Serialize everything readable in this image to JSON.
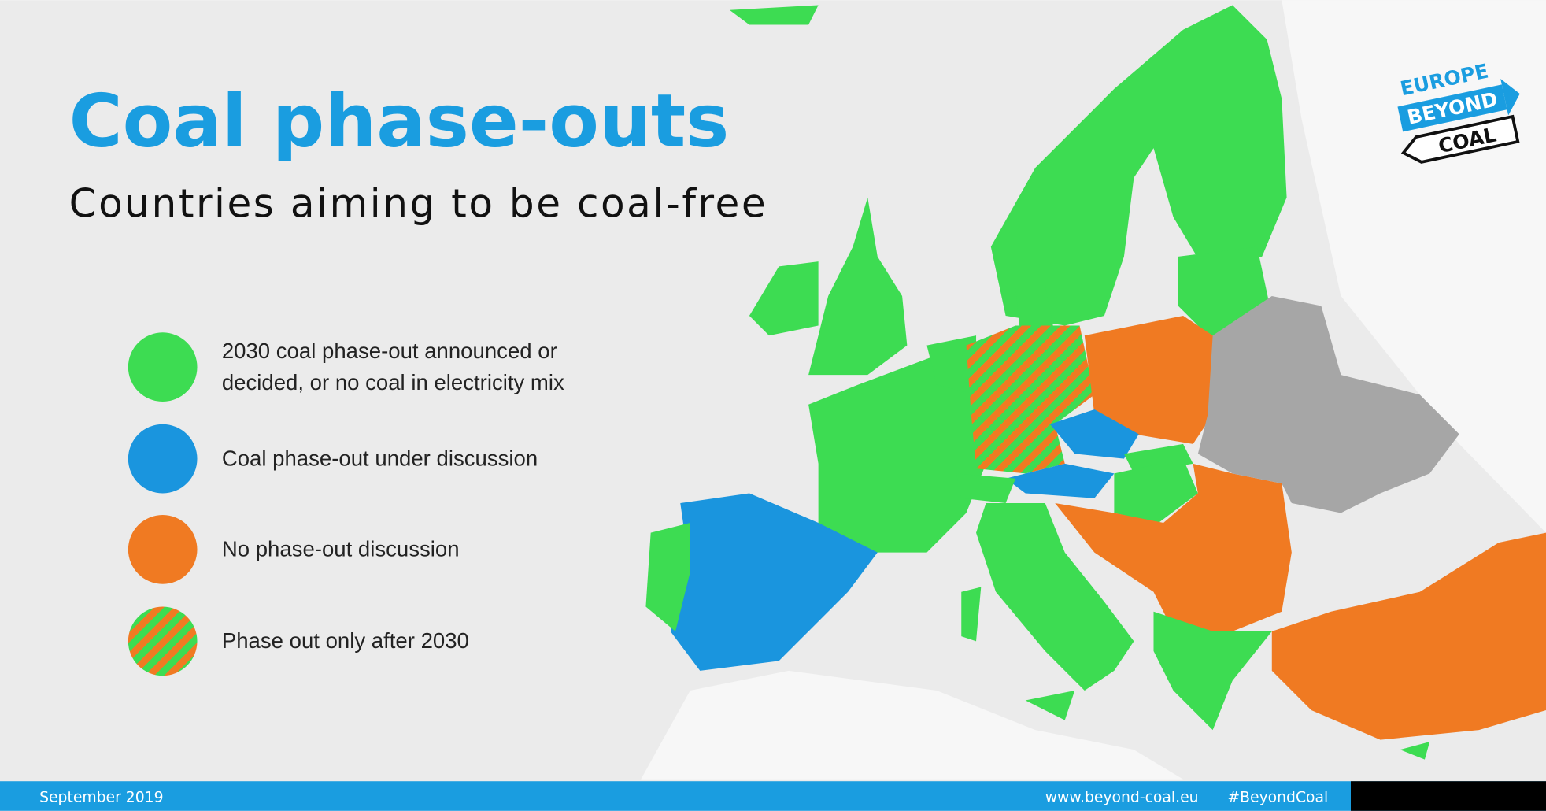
{
  "header": {
    "title": "Coal phase-outs",
    "subtitle": "Countries aiming to be coal-free"
  },
  "legend": {
    "items": [
      {
        "label": "2030 coal phase-out announced or decided, or no coal in electricity mix",
        "color": "#3ddc52"
      },
      {
        "label": "Coal phase-out under discussion",
        "color": "#1a95de"
      },
      {
        "label": "No phase-out discussion",
        "color": "#f07a22"
      },
      {
        "label": "Phase out only after 2030"
      }
    ]
  },
  "logo": {
    "lines": [
      "EUROPE",
      "BEYOND",
      "COAL"
    ]
  },
  "footer": {
    "date": "September 2019",
    "website": "www.beyond-coal.eu",
    "hashtag": "#BeyondCoal"
  }
}
